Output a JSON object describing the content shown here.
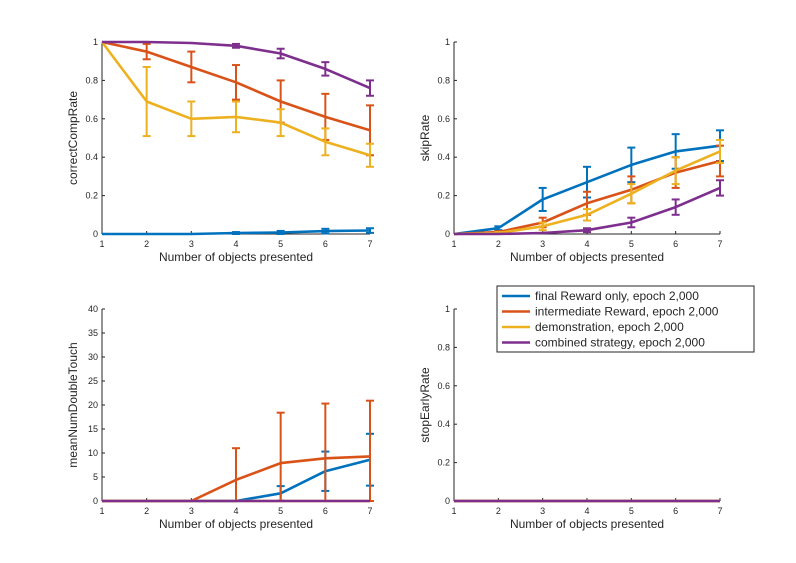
{
  "legend": {
    "placement": "top-right of bottom-right subplot",
    "entries": [
      {
        "label": "final Reward only, epoch 2,000",
        "color": "#0072BD"
      },
      {
        "label": "intermediate Reward, epoch 2,000",
        "color": "#D95319"
      },
      {
        "label": "demonstration, epoch 2,000",
        "color": "#EDB120"
      },
      {
        "label": "combined strategy, epoch 2,000",
        "color": "#7E2F8E"
      }
    ]
  },
  "chart_data": [
    {
      "type": "line",
      "position": "top-left",
      "xlabel": "Number of objects presented",
      "ylabel": "correctCompRate",
      "xlim": [
        1,
        7
      ],
      "ylim": [
        0,
        1
      ],
      "xticks": [
        "1",
        "2",
        "3",
        "4",
        "5",
        "6",
        "7"
      ],
      "yticks": [
        "0",
        "0.2",
        "0.4",
        "0.6",
        "0.8",
        "1"
      ],
      "x": [
        1,
        2,
        3,
        4,
        5,
        6,
        7
      ],
      "series": [
        {
          "name": "final Reward only, epoch 2,000",
          "color": "#0072BD",
          "values": [
            0,
            0,
            0,
            0.005,
            0.008,
            0.015,
            0.018
          ],
          "error": [
            null,
            null,
            null,
            0.005,
            0.008,
            0.012,
            0.012
          ]
        },
        {
          "name": "intermediate Reward, epoch 2,000",
          "color": "#D95319",
          "values": [
            1,
            0.95,
            0.87,
            0.79,
            0.69,
            0.61,
            0.54
          ],
          "error": [
            null,
            0.04,
            0.08,
            0.09,
            0.11,
            0.12,
            0.13
          ]
        },
        {
          "name": "demonstration, epoch 2,000",
          "color": "#EDB120",
          "values": [
            1,
            0.69,
            0.6,
            0.61,
            0.58,
            0.48,
            0.41
          ],
          "error": [
            null,
            0.18,
            0.09,
            0.08,
            0.07,
            0.07,
            0.06
          ]
        },
        {
          "name": "combined strategy, epoch 2,000",
          "color": "#7E2F8E",
          "values": [
            1,
            1,
            0.995,
            0.98,
            0.94,
            0.86,
            0.76
          ],
          "error": [
            null,
            null,
            null,
            0.01,
            0.025,
            0.035,
            0.04
          ]
        }
      ]
    },
    {
      "type": "line",
      "position": "top-right",
      "xlabel": "Number of objects presented",
      "ylabel": "skipRate",
      "xlim": [
        1,
        7
      ],
      "ylim": [
        0,
        1
      ],
      "xticks": [
        "1",
        "2",
        "3",
        "4",
        "5",
        "6",
        "7"
      ],
      "yticks": [
        "0",
        "0.2",
        "0.4",
        "0.6",
        "0.8",
        "1"
      ],
      "x": [
        1,
        2,
        3,
        4,
        5,
        6,
        7
      ],
      "series": [
        {
          "name": "final Reward only, epoch 2,000",
          "color": "#0072BD",
          "values": [
            0,
            0.03,
            0.18,
            0.27,
            0.36,
            0.43,
            0.46
          ],
          "error": [
            null,
            0.01,
            0.06,
            0.08,
            0.09,
            0.09,
            0.08
          ]
        },
        {
          "name": "intermediate Reward, epoch 2,000",
          "color": "#D95319",
          "values": [
            0,
            0.01,
            0.06,
            0.16,
            0.23,
            0.32,
            0.38
          ],
          "error": [
            null,
            0.005,
            0.025,
            0.06,
            0.07,
            0.08,
            0.08
          ]
        },
        {
          "name": "demonstration, epoch 2,000",
          "color": "#EDB120",
          "values": [
            0,
            0.005,
            0.04,
            0.1,
            0.21,
            0.33,
            0.43
          ],
          "error": [
            null,
            0.005,
            0.02,
            0.03,
            0.05,
            0.07,
            0.06
          ]
        },
        {
          "name": "combined strategy, epoch 2,000",
          "color": "#7E2F8E",
          "values": [
            0,
            0,
            0.005,
            0.02,
            0.06,
            0.14,
            0.24
          ],
          "error": [
            null,
            null,
            null,
            0.01,
            0.025,
            0.04,
            0.04
          ]
        }
      ]
    },
    {
      "type": "line",
      "position": "bottom-left",
      "xlabel": "Number of objects presented",
      "ylabel": "meanNumDoubleTouch",
      "xlim": [
        1,
        7
      ],
      "ylim": [
        0,
        40
      ],
      "xticks": [
        "1",
        "2",
        "3",
        "4",
        "5",
        "6",
        "7"
      ],
      "yticks": [
        "0",
        "5",
        "10",
        "15",
        "20",
        "25",
        "30",
        "35",
        "40"
      ],
      "x": [
        1,
        2,
        3,
        4,
        5,
        6,
        7
      ],
      "series": [
        {
          "name": "final Reward only, epoch 2,000",
          "color": "#0072BD",
          "values": [
            0,
            0,
            0,
            0,
            1.6,
            6.2,
            8.6
          ],
          "error": [
            null,
            null,
            null,
            null,
            1.5,
            4.1,
            5.4
          ]
        },
        {
          "name": "intermediate Reward, epoch 2,000",
          "color": "#D95319",
          "values": [
            0,
            0,
            0,
            4.4,
            7.9,
            8.9,
            9.3
          ],
          "error": [
            null,
            null,
            null,
            6.6,
            10.5,
            11.4,
            11.6
          ]
        },
        {
          "name": "demonstration, epoch 2,000",
          "color": "#EDB120",
          "values": [
            0,
            0,
            0,
            0,
            0,
            0,
            0
          ],
          "error": [
            null,
            null,
            null,
            null,
            null,
            null,
            null
          ]
        },
        {
          "name": "combined strategy, epoch 2,000",
          "color": "#7E2F8E",
          "values": [
            0,
            0,
            0,
            0,
            0,
            0,
            0
          ],
          "error": [
            null,
            null,
            null,
            null,
            null,
            null,
            null
          ]
        }
      ]
    },
    {
      "type": "line",
      "position": "bottom-right",
      "xlabel": "Number of objects presented",
      "ylabel": "stopEarlyRate",
      "xlim": [
        1,
        7
      ],
      "ylim": [
        0,
        1
      ],
      "xticks": [
        "1",
        "2",
        "3",
        "4",
        "5",
        "6",
        "7"
      ],
      "yticks": [
        "0",
        "0.2",
        "0.4",
        "0.6",
        "0.8",
        "1"
      ],
      "x": [
        1,
        2,
        3,
        4,
        5,
        6,
        7
      ],
      "series": [
        {
          "name": "final Reward only, epoch 2,000",
          "color": "#0072BD",
          "values": [
            0,
            0,
            0,
            0,
            0,
            0,
            0
          ],
          "error": [
            null,
            null,
            null,
            null,
            null,
            null,
            null
          ]
        },
        {
          "name": "intermediate Reward, epoch 2,000",
          "color": "#D95319",
          "values": [
            0,
            0,
            0,
            0,
            0,
            0,
            0
          ],
          "error": [
            null,
            null,
            null,
            null,
            null,
            null,
            null
          ]
        },
        {
          "name": "demonstration, epoch 2,000",
          "color": "#EDB120",
          "values": [
            0,
            0,
            0,
            0,
            0,
            0,
            0
          ],
          "error": [
            null,
            null,
            null,
            null,
            null,
            null,
            null
          ]
        },
        {
          "name": "combined strategy, epoch 2,000",
          "color": "#7E2F8E",
          "values": [
            0,
            0,
            0,
            0,
            0,
            0,
            0
          ],
          "error": [
            null,
            null,
            null,
            null,
            null,
            null,
            null
          ]
        }
      ]
    }
  ]
}
